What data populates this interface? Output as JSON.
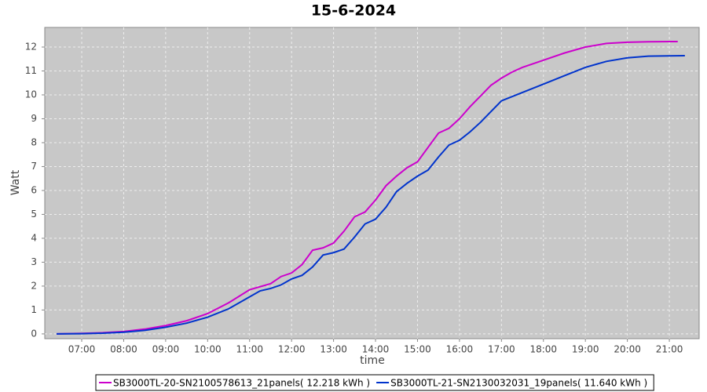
{
  "chart_data": {
    "type": "line",
    "title": "15-6-2024",
    "x_label": "time",
    "y_label": "Watt",
    "xlim": [
      6.12,
      21.71
    ],
    "ylim": [
      -0.2,
      12.82
    ],
    "xticks": [
      {
        "value": 7,
        "label": "07:00"
      },
      {
        "value": 8,
        "label": "08:00"
      },
      {
        "value": 9,
        "label": "09:00"
      },
      {
        "value": 10,
        "label": "10:00"
      },
      {
        "value": 11,
        "label": "11:00"
      },
      {
        "value": 12,
        "label": "12:00"
      },
      {
        "value": 13,
        "label": "13:00"
      },
      {
        "value": 14,
        "label": "14:00"
      },
      {
        "value": 15,
        "label": "15:00"
      },
      {
        "value": 16,
        "label": "16:00"
      },
      {
        "value": 17,
        "label": "17:00"
      },
      {
        "value": 18,
        "label": "18:00"
      },
      {
        "value": 19,
        "label": "19:00"
      },
      {
        "value": 20,
        "label": "20:00"
      },
      {
        "value": 21,
        "label": "21:00"
      }
    ],
    "yticks": [
      0,
      1,
      2,
      3,
      4,
      5,
      6,
      7,
      8,
      9,
      10,
      11,
      12
    ],
    "grid": true,
    "legend": "bottom",
    "series": [
      {
        "name": "SB3000TL-20-SN2100578613_21panels( 12.218 kWh )",
        "color": "#cc00cc",
        "x": [
          6.4,
          7.0,
          7.5,
          8.0,
          8.5,
          9.0,
          9.5,
          10.0,
          10.5,
          11.0,
          11.5,
          11.75,
          12.0,
          12.25,
          12.5,
          12.75,
          13.0,
          13.25,
          13.5,
          13.75,
          14.0,
          14.25,
          14.5,
          14.75,
          15.0,
          15.25,
          15.5,
          15.75,
          16.0,
          16.25,
          16.5,
          16.75,
          17.0,
          17.25,
          17.5,
          18.0,
          18.5,
          19.0,
          19.5,
          20.0,
          20.5,
          21.0,
          21.2
        ],
        "values": [
          0,
          0.02,
          0.05,
          0.1,
          0.2,
          0.35,
          0.55,
          0.85,
          1.3,
          1.85,
          2.1,
          2.4,
          2.55,
          2.9,
          3.5,
          3.6,
          3.8,
          4.3,
          4.9,
          5.1,
          5.6,
          6.2,
          6.6,
          6.95,
          7.2,
          7.8,
          8.4,
          8.6,
          9.0,
          9.5,
          9.95,
          10.4,
          10.7,
          10.95,
          11.15,
          11.45,
          11.75,
          12.0,
          12.15,
          12.2,
          12.22,
          12.23,
          12.23
        ]
      },
      {
        "name": "SB3000TL-21-SN2130032031_19panels( 11.640 kWh )",
        "color": "#0033cc",
        "x": [
          6.4,
          7.0,
          7.5,
          8.0,
          8.5,
          9.0,
          9.5,
          10.0,
          10.5,
          11.0,
          11.25,
          11.5,
          11.75,
          12.0,
          12.25,
          12.5,
          12.75,
          13.0,
          13.25,
          13.5,
          13.75,
          14.0,
          14.25,
          14.5,
          14.75,
          15.0,
          15.25,
          15.5,
          15.75,
          16.0,
          16.25,
          16.5,
          16.75,
          17.0,
          17.5,
          18.0,
          18.5,
          19.0,
          19.5,
          20.0,
          20.5,
          21.0,
          21.37
        ],
        "values": [
          0,
          0.01,
          0.03,
          0.07,
          0.15,
          0.28,
          0.45,
          0.7,
          1.05,
          1.55,
          1.8,
          1.9,
          2.05,
          2.3,
          2.45,
          2.8,
          3.3,
          3.4,
          3.55,
          4.05,
          4.6,
          4.8,
          5.3,
          5.95,
          6.3,
          6.6,
          6.85,
          7.4,
          7.9,
          8.1,
          8.45,
          8.85,
          9.3,
          9.75,
          10.1,
          10.45,
          10.8,
          11.15,
          11.4,
          11.55,
          11.62,
          11.63,
          11.64
        ]
      }
    ]
  }
}
